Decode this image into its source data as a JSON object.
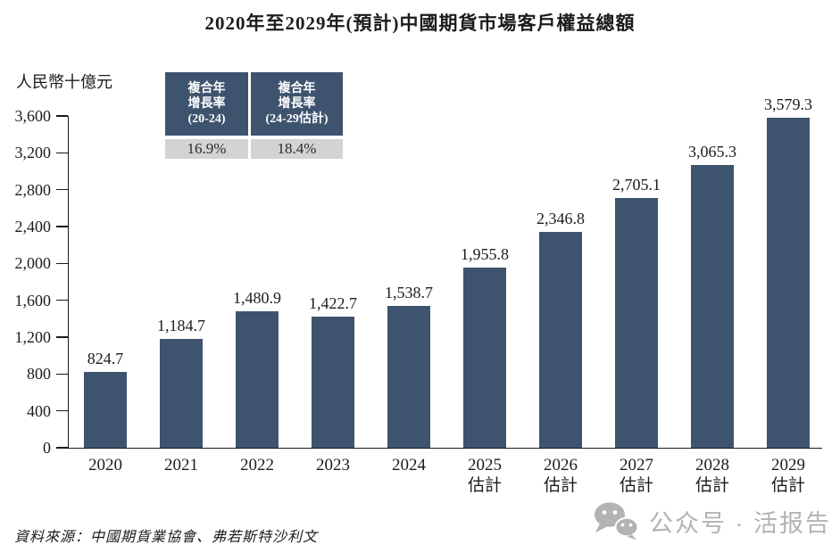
{
  "title": "2020年至2029年(預計)中國期貨市場客戶權益總額",
  "y_unit_label": "人民幣十億元",
  "cagr_boxes": [
    {
      "header_lines": [
        "複合年",
        "增長率",
        "(20-24)"
      ],
      "value": "16.9%"
    },
    {
      "header_lines": [
        "複合年",
        "增長率",
        "(24-29估計)"
      ],
      "value": "18.4%"
    }
  ],
  "chart_data": {
    "type": "bar",
    "title": "2020年至2029年(預計)中國期貨市場客戶權益總額",
    "ylabel": "人民幣十億元",
    "ylim": [
      0,
      3600
    ],
    "yticks": [
      0,
      400,
      800,
      1200,
      1600,
      2000,
      2400,
      2800,
      3200,
      3600
    ],
    "ytick_labels": [
      "0",
      "400",
      "800",
      "1,200",
      "1,600",
      "2,000",
      "2,400",
      "2,800",
      "3,200",
      "3,600"
    ],
    "grid": false,
    "categories": [
      {
        "label": "2020",
        "sub": ""
      },
      {
        "label": "2021",
        "sub": ""
      },
      {
        "label": "2022",
        "sub": ""
      },
      {
        "label": "2023",
        "sub": ""
      },
      {
        "label": "2024",
        "sub": ""
      },
      {
        "label": "2025",
        "sub": "估計"
      },
      {
        "label": "2026",
        "sub": "估計"
      },
      {
        "label": "2027",
        "sub": "估計"
      },
      {
        "label": "2028",
        "sub": "估計"
      },
      {
        "label": "2029",
        "sub": "估計"
      }
    ],
    "values": [
      824.7,
      1184.7,
      1480.9,
      1422.7,
      1538.7,
      1955.8,
      2346.8,
      2705.1,
      3065.3,
      3579.3
    ],
    "value_labels": [
      "824.7",
      "1,184.7",
      "1,480.9",
      "1,422.7",
      "1,538.7",
      "1,955.8",
      "2,346.8",
      "2,705.1",
      "3,065.3",
      "3,579.3"
    ],
    "annotations": {
      "cagr_20_24": "16.9%",
      "cagr_24_29_est": "18.4%"
    }
  },
  "source": {
    "text": "資料來源：中國期貨業協會、弗若斯特沙利文"
  },
  "watermark": {
    "icon": "wechat-icon",
    "text": "公众号 · 活报告"
  },
  "colors": {
    "bar": "#3e536e",
    "cagr_header_bg": "#3e536e",
    "cagr_value_bg": "#d3d3d3",
    "text": "#1c1c1c",
    "watermark": "#b3b3b3"
  }
}
